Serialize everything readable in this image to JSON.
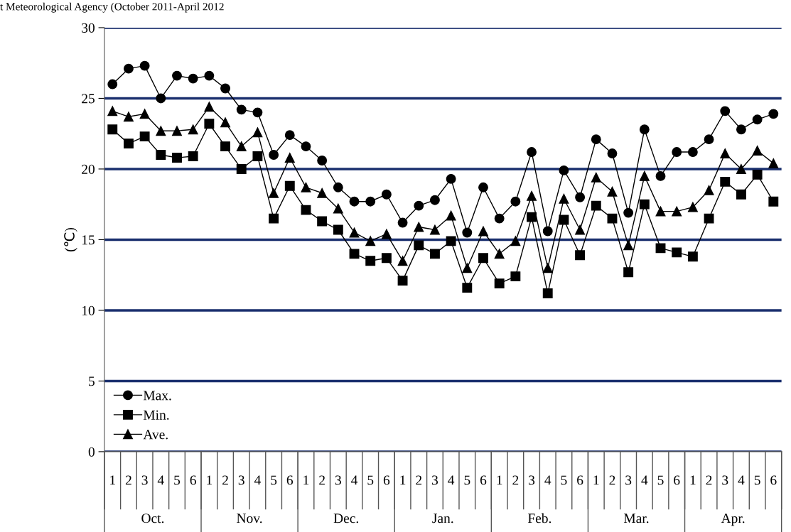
{
  "chart_data": {
    "type": "line",
    "ylabel": "(℃)",
    "annotations": [
      "t Meteorological Agency (October 2011-April 2012",
      "Oct.",
      "Nov.",
      "Dec.",
      "Jan.",
      "Feb.",
      "Mar.",
      "Apr."
    ],
    "categories": [
      "1",
      "2",
      "3",
      "4",
      "5",
      "6",
      "1",
      "2",
      "3",
      "4",
      "5",
      "6",
      "1",
      "2",
      "3",
      "4",
      "5",
      "6",
      "1",
      "2",
      "3",
      "4",
      "5",
      "6",
      "1",
      "2",
      "3",
      "4",
      "5",
      "6",
      "1",
      "2",
      "3",
      "4",
      "5",
      "6",
      "1",
      "2",
      "3",
      "4",
      "5",
      "6"
    ],
    "series": [
      {
        "name": "Max.",
        "color": "#000000",
        "marker": "circle",
        "values": [
          26.0,
          27.1,
          27.3,
          25.0,
          26.6,
          26.4,
          26.6,
          25.7,
          24.2,
          24.0,
          21.0,
          22.4,
          21.6,
          20.6,
          18.7,
          17.7,
          17.7,
          18.2,
          16.2,
          17.4,
          17.8,
          19.3,
          15.5,
          18.7,
          16.5,
          17.7,
          21.2,
          15.6,
          19.9,
          18.0,
          22.1,
          21.1,
          16.9,
          22.8,
          19.5,
          21.2,
          21.2,
          22.1,
          24.1,
          22.8,
          23.5,
          23.9
        ]
      },
      {
        "name": "Min.",
        "color": "#000000",
        "marker": "square",
        "values": [
          22.8,
          21.8,
          22.3,
          21.0,
          20.8,
          20.9,
          23.2,
          21.6,
          20.0,
          20.9,
          16.5,
          18.8,
          17.1,
          16.3,
          15.7,
          14.0,
          13.5,
          13.7,
          12.1,
          14.6,
          14.0,
          14.9,
          11.6,
          13.7,
          11.9,
          12.4,
          16.6,
          11.2,
          16.4,
          13.9,
          17.4,
          16.5,
          12.7,
          17.5,
          14.4,
          14.1,
          13.8,
          16.5,
          19.1,
          18.2,
          19.6,
          17.7
        ]
      },
      {
        "name": "Ave.",
        "color": "#000000",
        "marker": "triangle",
        "values": [
          24.1,
          23.7,
          23.9,
          22.7,
          22.7,
          22.8,
          24.4,
          23.3,
          21.6,
          22.6,
          18.3,
          20.8,
          18.7,
          18.3,
          17.2,
          15.5,
          14.9,
          15.4,
          13.5,
          15.9,
          15.7,
          16.7,
          13.0,
          15.6,
          14.0,
          14.9,
          18.1,
          13.0,
          17.9,
          15.7,
          19.4,
          18.4,
          14.6,
          19.5,
          17.0,
          17.0,
          17.3,
          18.5,
          21.1,
          20.0,
          21.3,
          20.4
        ]
      }
    ],
    "ylim": [
      0,
      30
    ],
    "yticks": [
      0,
      5,
      10,
      15,
      20,
      25,
      30
    ],
    "grid": "y",
    "legend": "bottom left",
    "line_style": "solid"
  }
}
